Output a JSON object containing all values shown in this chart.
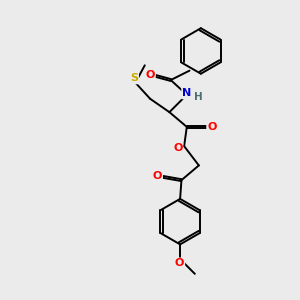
{
  "bg_color": "#ebebeb",
  "atom_colors": {
    "O": "#ff0000",
    "N": "#0000cd",
    "S": "#ccaa00",
    "C": "#000000",
    "H": "#507070"
  },
  "bond_color": "#000000",
  "bond_width": 1.4,
  "dbo": 0.035,
  "xlim": [
    0,
    10
  ],
  "ylim": [
    0,
    11
  ]
}
